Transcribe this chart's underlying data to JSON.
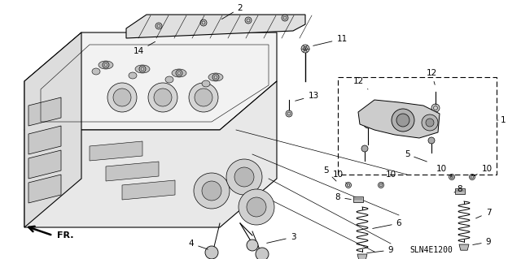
{
  "bg_color": "#ffffff",
  "fig_width": 6.4,
  "fig_height": 3.19,
  "dpi": 100,
  "diagram_code": "SLN4E1200",
  "direction_label": "FR.",
  "line_color": "#000000",
  "text_color": "#000000",
  "label_fontsize": 7.5,
  "diagram_fontsize": 7,
  "gray_fill": "#d8d8d8",
  "dark_gray": "#888888",
  "light_gray": "#eeeeee"
}
